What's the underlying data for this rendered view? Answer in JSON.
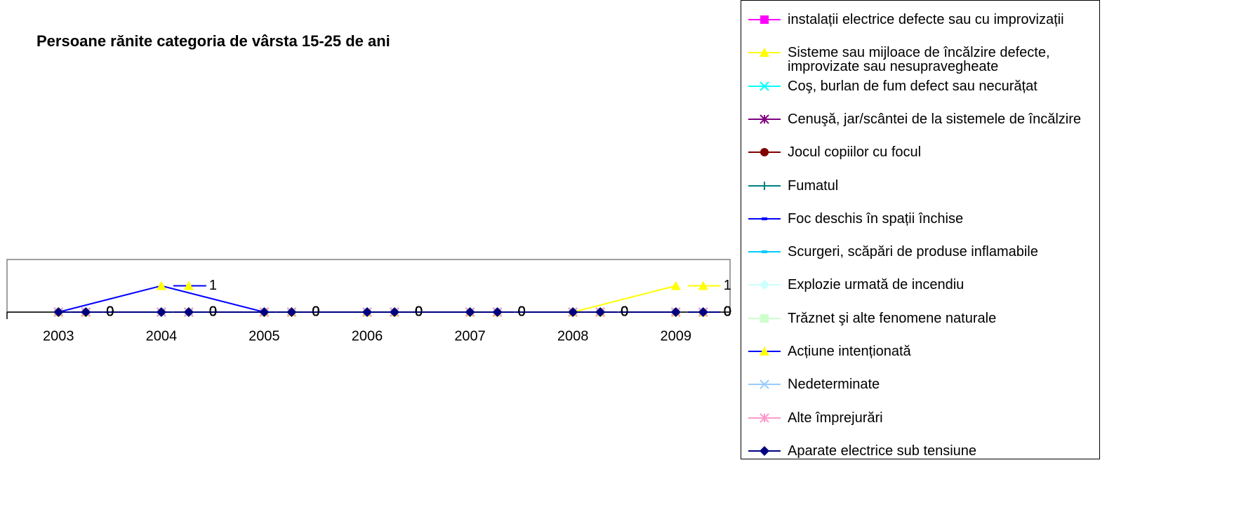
{
  "chart_data": {
    "type": "line",
    "title": "Persoane rănite categoria de vârsta 15-25 de ani",
    "categories": [
      "2003",
      "2004",
      "2005",
      "2006",
      "2007",
      "2008",
      "2009"
    ],
    "ylim": [
      0,
      2
    ],
    "series": [
      {
        "name": "instalații electrice defecte sau cu improvizații",
        "color": "#ff00ff",
        "marker": "square",
        "marker_color": "#ff00ff",
        "values": [
          0,
          0,
          0,
          0,
          0,
          0,
          0
        ]
      },
      {
        "name": "Sisteme sau mijloace de încălzire defecte, improvizate sau nesupravegheate",
        "color": "#ffff00",
        "marker": "triangle",
        "marker_color": "#ffff00",
        "values": [
          0,
          0,
          0,
          0,
          0,
          0,
          1
        ]
      },
      {
        "name": "Coş, burlan de fum defect sau necurățat",
        "color": "#00ffff",
        "marker": "x",
        "marker_color": "#00ffff",
        "values": [
          0,
          0,
          0,
          0,
          0,
          0,
          0
        ]
      },
      {
        "name": "Cenuşă, jar/scântei de la sistemele de încălzire",
        "color": "#800080",
        "marker": "star",
        "marker_color": "#800080",
        "values": [
          0,
          0,
          0,
          0,
          0,
          0,
          0
        ]
      },
      {
        "name": "Jocul copiilor cu focul",
        "color": "#800000",
        "marker": "circle",
        "marker_color": "#800000",
        "values": [
          0,
          0,
          0,
          0,
          0,
          0,
          0
        ]
      },
      {
        "name": "Fumatul",
        "color": "#008080",
        "marker": "plus",
        "marker_color": "#008080",
        "values": [
          0,
          0,
          0,
          0,
          0,
          0,
          0
        ]
      },
      {
        "name": "Foc deschis în spații închise",
        "color": "#0000ff",
        "marker": "dash",
        "marker_color": "#0000ff",
        "values": [
          0,
          0,
          0,
          0,
          0,
          0,
          0
        ]
      },
      {
        "name": "Scurgeri, scăpări de produse inflamabile",
        "color": "#00ccff",
        "marker": "dash",
        "marker_color": "#00ccff",
        "values": [
          0,
          0,
          0,
          0,
          0,
          0,
          0
        ]
      },
      {
        "name": "Explozie urmată de incendiu",
        "color": "#ccffff",
        "marker": "diamond",
        "marker_color": "#ccffff",
        "values": [
          0,
          0,
          0,
          0,
          0,
          0,
          0
        ]
      },
      {
        "name": "Trăznet şi alte fenomene naturale",
        "color": "#ccffcc",
        "marker": "square",
        "marker_color": "#ccffcc",
        "values": [
          0,
          0,
          0,
          0,
          0,
          0,
          0
        ]
      },
      {
        "name": "Acțiune intenționată",
        "color": "#0000ff",
        "marker": "triangle",
        "marker_color": "#ffff00",
        "values": [
          0,
          1,
          0,
          0,
          0,
          0,
          0
        ]
      },
      {
        "name": "Nedeterminate",
        "color": "#99ccff",
        "marker": "x",
        "marker_color": "#99ccff",
        "values": [
          0,
          0,
          0,
          0,
          0,
          0,
          0
        ]
      },
      {
        "name": "Alte împrejurări",
        "color": "#ff99cc",
        "marker": "star",
        "marker_color": "#ff99cc",
        "values": [
          0,
          0,
          0,
          0,
          0,
          0,
          0
        ]
      },
      {
        "name": "Aparate electrice sub tensiune",
        "color": "#000080",
        "marker": "diamond",
        "marker_color": "#000080",
        "values": [
          0,
          0,
          0,
          0,
          0,
          0,
          0
        ]
      }
    ]
  }
}
